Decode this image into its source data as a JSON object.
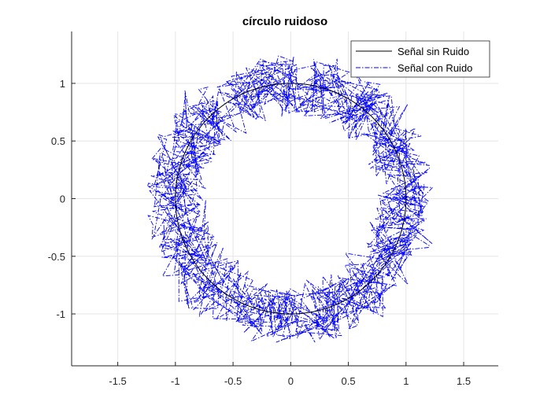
{
  "chart_data": {
    "type": "line",
    "title": "círculo ruidoso",
    "xlabel": "",
    "ylabel": "",
    "xlim": [
      -1.9,
      1.8
    ],
    "ylim": [
      -1.45,
      1.45
    ],
    "xticks": [
      -1.5,
      -1,
      -0.5,
      0,
      0.5,
      1,
      1.5
    ],
    "xtick_labels": [
      "-1.5",
      "-1",
      "-0.5",
      "0",
      "0.5",
      "1",
      "1.5"
    ],
    "yticks": [
      -1,
      -0.5,
      0,
      0.5,
      1
    ],
    "ytick_labels": [
      "-1",
      "-0.5",
      "0",
      "0.5",
      "1"
    ],
    "grid": true,
    "legend_position": "top-right",
    "axis_color": "#262626",
    "grid_color": "#e5e5e5",
    "series": [
      {
        "name": "Señal sin Ruido",
        "color": "#000000",
        "line_style": "solid",
        "shape": "unit circle: x = cos(t), y = sin(t), t from 0 to 2π",
        "center": [
          0,
          0
        ],
        "radius": 1
      },
      {
        "name": "Señal con Ruido",
        "color": "#0000ff",
        "line_style": "dash-dot",
        "shape": "unit circle with random noise added to x and y",
        "center": [
          0,
          0
        ],
        "radius": 1,
        "noise_amplitude": 0.25
      }
    ]
  }
}
